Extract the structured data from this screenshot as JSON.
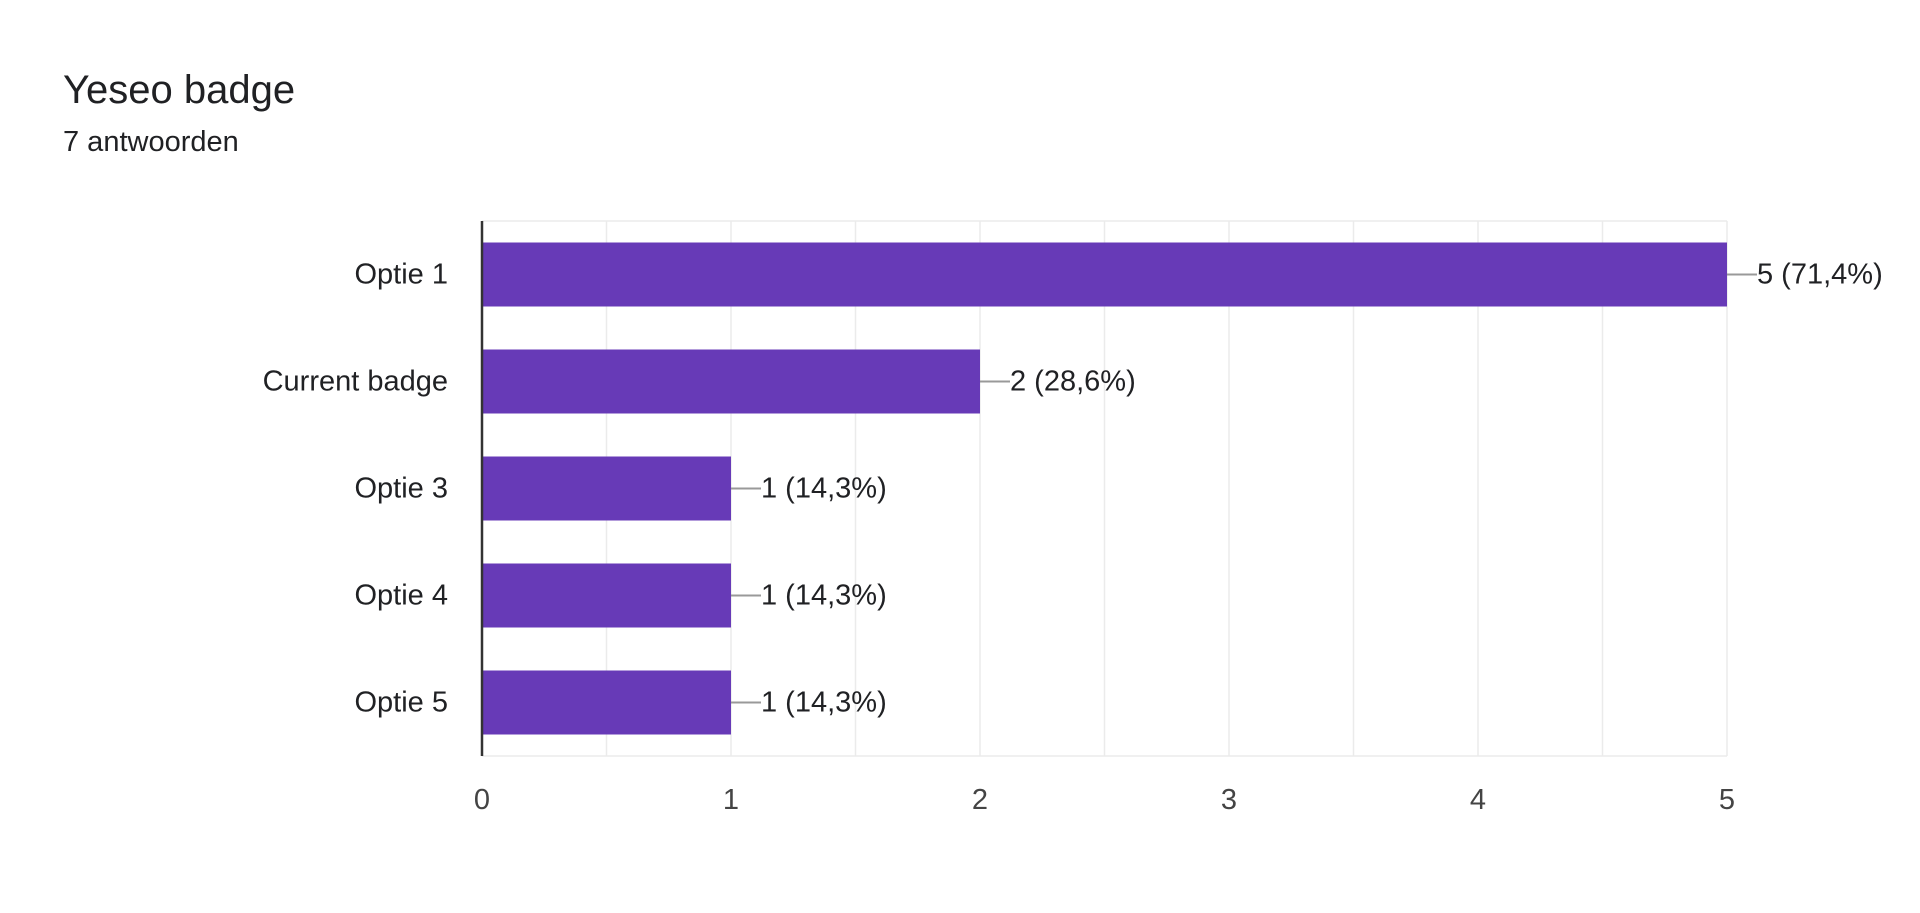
{
  "header": {
    "title": "Yeseo badge",
    "subtitle": "7 antwoorden"
  },
  "colors": {
    "bar": "#673ab7",
    "grid": "#ebebeb",
    "axis": "#333333",
    "label": "#202124",
    "tick": "#444444",
    "leader": "#999999"
  },
  "chart_data": {
    "type": "bar",
    "orientation": "horizontal",
    "title": "Yeseo badge",
    "subtitle": "7 antwoorden",
    "categories": [
      "Optie 1",
      "Current badge",
      "Optie 3",
      "Optie 4",
      "Optie 5"
    ],
    "values": [
      5,
      2,
      1,
      1,
      1
    ],
    "data_labels": [
      "5 (71,4%)",
      "2 (28,6%)",
      "1 (14,3%)",
      "1 (14,3%)",
      "1 (14,3%)"
    ],
    "x_ticks": [
      "0",
      "1",
      "2",
      "3",
      "4",
      "5"
    ],
    "xlim": [
      0,
      5
    ],
    "grid": true,
    "legend": "none"
  }
}
